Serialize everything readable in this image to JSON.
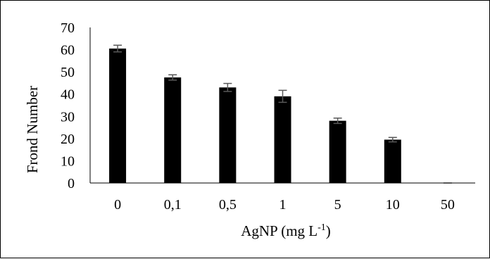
{
  "chart_data": {
    "type": "bar",
    "title": "",
    "xlabel": "AgNP (mg L",
    "xlabel_sup": "-1",
    "xlabel_suffix": ")",
    "ylabel": "Frond Number",
    "categories": [
      "0",
      "0,1",
      "0,5",
      "1",
      "5",
      "10",
      "50"
    ],
    "values": [
      60.5,
      47.5,
      43.0,
      39.0,
      28.0,
      19.5,
      0
    ],
    "errors": [
      1.5,
      1.2,
      1.8,
      2.7,
      1.2,
      1.0,
      0
    ],
    "ylim": [
      0,
      70
    ],
    "yticks": [
      0,
      10,
      20,
      30,
      40,
      50,
      60,
      70
    ],
    "grid": false,
    "legend": "none",
    "bar_color": "#000000",
    "error_color": "#595959"
  }
}
